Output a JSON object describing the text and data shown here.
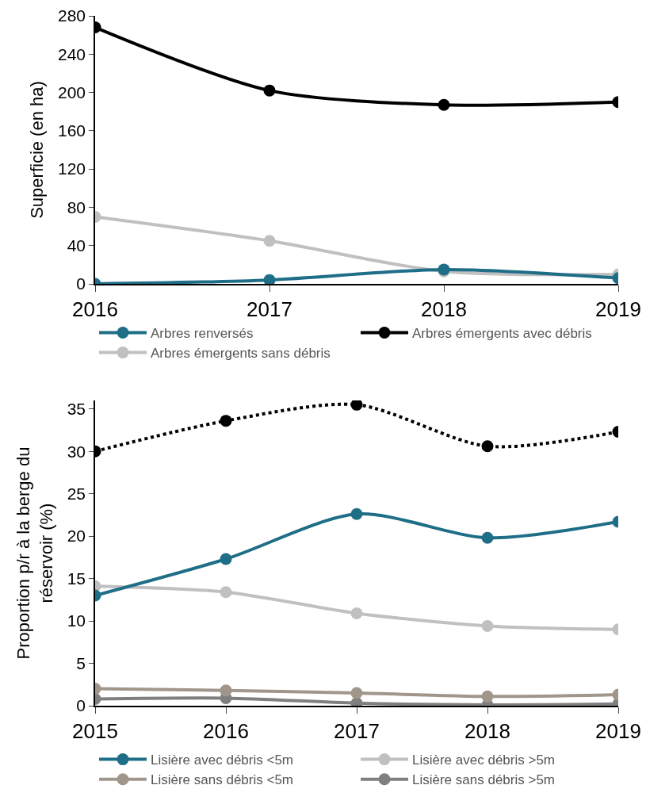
{
  "chart_data": [
    {
      "type": "line",
      "ylabel": "Superficie (en ha)",
      "x": [
        2016,
        2017,
        2018,
        2019
      ],
      "xlim": [
        2016,
        2019
      ],
      "xticks": [
        2016,
        2017,
        2018,
        2019
      ],
      "ylim": [
        0,
        280
      ],
      "yticks": [
        0,
        40,
        80,
        120,
        160,
        200,
        240,
        280
      ],
      "grid": false,
      "legend": "bottom",
      "marker": "circle",
      "line_style": "solid",
      "series": [
        {
          "name": "Arbres renversés",
          "color": "#1f6e87",
          "values": [
            0,
            4,
            15,
            6
          ]
        },
        {
          "name": "Arbres émergents avec débris",
          "color": "#000000",
          "values": [
            268,
            202,
            187,
            190
          ]
        },
        {
          "name": "Arbres émergents sans débris",
          "color": "#c0c0c0",
          "values": [
            70,
            45,
            13,
            10
          ]
        }
      ]
    },
    {
      "type": "line",
      "ylabel": "Proportion p/r à la berge du réservoir (%)",
      "x": [
        2015,
        2016,
        2017,
        2018,
        2019
      ],
      "xlim": [
        2015,
        2019
      ],
      "xticks": [
        2015,
        2016,
        2017,
        2018,
        2019
      ],
      "ylim": [
        0,
        36
      ],
      "yticks": [
        0,
        5,
        10,
        15,
        20,
        25,
        30,
        35
      ],
      "grid": false,
      "legend": "bottom",
      "marker": "circle",
      "line_style": "solid",
      "series": [
        {
          "color": "#000000",
          "line_style": "dotted",
          "values": [
            30,
            33.6,
            35.5,
            30.6,
            32.3
          ]
        },
        {
          "name": "Lisière avec débris <5m",
          "color": "#1f6e87",
          "values": [
            13,
            17.3,
            22.6,
            19.8,
            21.7
          ]
        },
        {
          "name": "Lisière avec débris >5m",
          "color": "#c0c0c0",
          "values": [
            14.1,
            13.4,
            10.9,
            9.4,
            9.0
          ]
        },
        {
          "name": "Lisière sans débris <5m",
          "color": "#a0968c",
          "values": [
            2.0,
            1.8,
            1.5,
            1.1,
            1.3
          ]
        },
        {
          "name": "Lisière sans débris >5m",
          "color": "#7f7f7f",
          "values": [
            0.8,
            0.9,
            0.3,
            0.1,
            0.2
          ]
        }
      ]
    }
  ]
}
